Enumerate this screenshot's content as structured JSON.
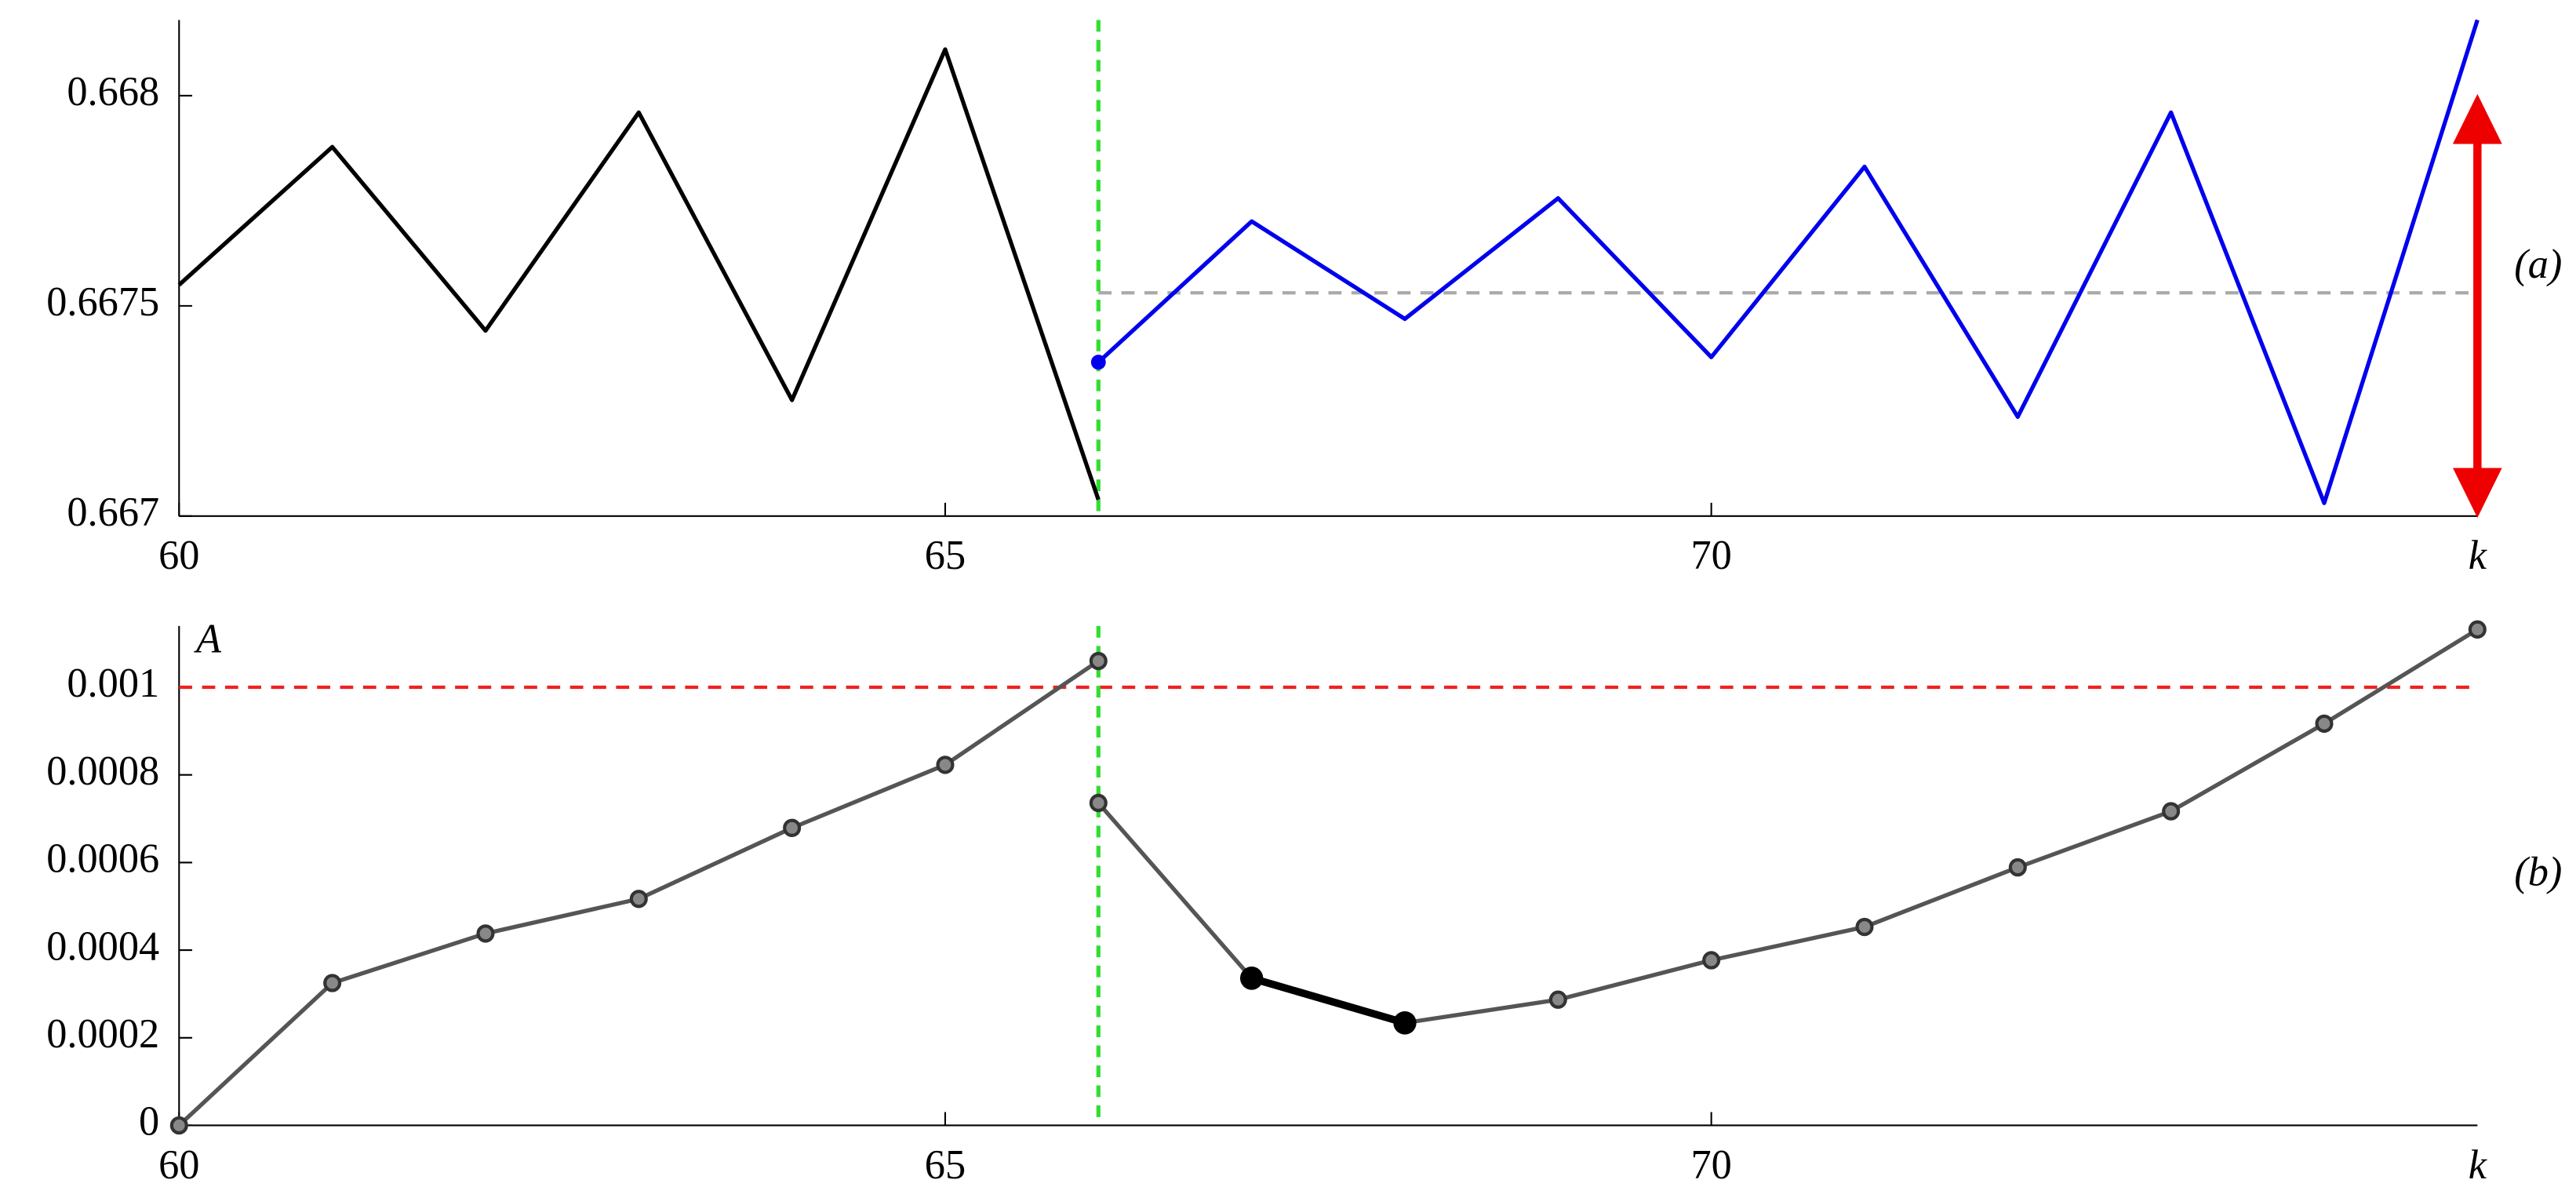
{
  "chart_data": [
    {
      "type": "line",
      "xlabel": "k",
      "panel_label": "(a)",
      "x": [
        60,
        61,
        62,
        63,
        64,
        65,
        66,
        67,
        68,
        69,
        70,
        71,
        72,
        73,
        74,
        75
      ],
      "xlim": [
        60,
        75
      ],
      "xticks": [
        60,
        65,
        70
      ],
      "ylim": [
        0.667,
        0.66818
      ],
      "yticks": [
        0.667,
        0.6675,
        0.668
      ],
      "vline": {
        "value": 66,
        "color": "#33dd33"
      },
      "hlines": [
        {
          "value": 0.667531,
          "from": 66,
          "color": "#aaaaaa"
        }
      ],
      "arrow": {
        "x": 75,
        "from": 0.667,
        "to": 0.668,
        "color": "#ee0000"
      },
      "series": [
        {
          "color": "#000000",
          "width": 2.5,
          "values": [
            0.66755,
            0.667878,
            0.667441,
            0.66796,
            0.667276,
            0.66811,
            0.667039,
            null,
            null,
            null,
            null,
            null,
            null,
            null,
            null,
            null
          ]
        },
        {
          "color": "#0000ee",
          "width": 2.5,
          "marker_first": true,
          "values": [
            null,
            null,
            null,
            null,
            null,
            null,
            0.667366,
            0.667701,
            0.667469,
            0.667756,
            0.667378,
            0.667831,
            0.667236,
            0.66796,
            0.667031,
            0.66818
          ]
        }
      ]
    },
    {
      "type": "line",
      "xlabel": "k",
      "panel_label": "(b)",
      "x": [
        60,
        61,
        62,
        63,
        64,
        65,
        66,
        67,
        68,
        69,
        70,
        71,
        72,
        73,
        74,
        75
      ],
      "xlim": [
        60,
        75
      ],
      "xticks": [
        60,
        65,
        70
      ],
      "ylim": [
        0,
        0.00114
      ],
      "yticks": [
        0,
        0.0002,
        0.0004,
        0.0006,
        0.0008,
        0.001
      ],
      "vline": {
        "value": 66,
        "color": "#33dd33"
      },
      "hlines": [
        {
          "value": 0.001,
          "color": "#ee2222",
          "label": "A"
        }
      ],
      "series": [
        {
          "color": "#555555",
          "width": 2.5,
          "markers": true,
          "values": [
            0,
            0.000325,
            0.000438,
            0.000517,
            0.000679,
            0.000823,
            0.00106,
            null,
            null,
            null,
            null,
            null,
            null,
            null,
            null,
            null
          ]
        },
        {
          "color": "#555555",
          "width": 2.5,
          "markers": true,
          "values": [
            null,
            null,
            null,
            null,
            null,
            null,
            0.000736,
            0.000336,
            0.000234,
            0.000287,
            0.000377,
            0.000453,
            0.000589,
            0.000717,
            0.000917,
            0.001132
          ]
        },
        {
          "color": "#000000",
          "width": 4.5,
          "big_markers": true,
          "values": [
            null,
            null,
            null,
            null,
            null,
            null,
            null,
            0.000336,
            0.000234,
            null,
            null,
            null,
            null,
            null,
            null,
            null
          ]
        }
      ]
    }
  ]
}
